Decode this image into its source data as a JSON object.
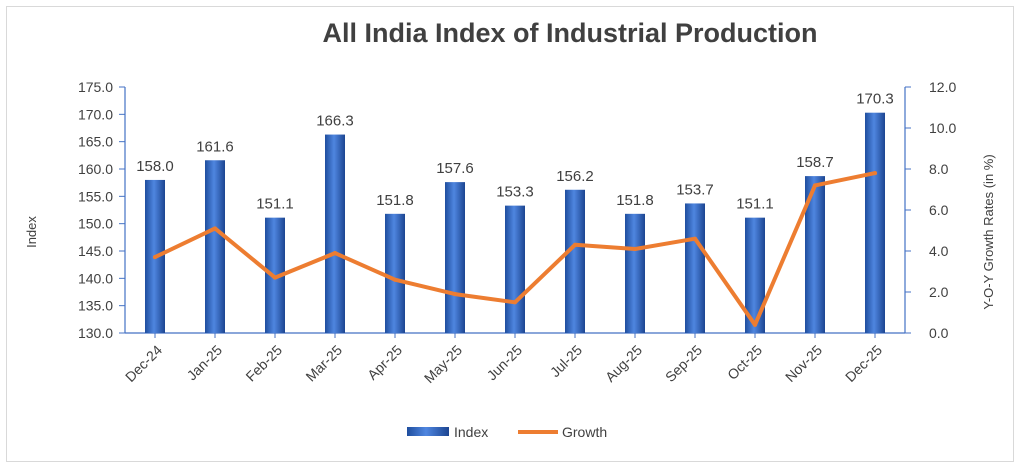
{
  "chart_data": {
    "type": "bar",
    "title": "All India Index of Industrial Production",
    "categories": [
      "Dec-24",
      "Jan-25",
      "Feb-25",
      "Mar-25",
      "Apr-25",
      "May-25",
      "Jun-25",
      "Jul-25",
      "Aug-25",
      "Sep-25",
      "Oct-25",
      "Nov-25",
      "Dec-25"
    ],
    "series": [
      {
        "name": "Index",
        "type": "bar",
        "axis": "left",
        "values": [
          158.0,
          161.6,
          151.1,
          166.3,
          151.8,
          157.6,
          153.3,
          156.2,
          151.8,
          153.7,
          151.1,
          158.7,
          170.3
        ],
        "labels": [
          "158.0",
          "161.6",
          "151.1",
          "166.3",
          "151.8",
          "157.6",
          "153.3",
          "156.2",
          "151.8",
          "153.7",
          "151.1",
          "158.7",
          "170.3"
        ],
        "color": "#2e5fbf"
      },
      {
        "name": "Growth",
        "type": "line",
        "axis": "right",
        "values": [
          3.7,
          5.1,
          2.7,
          3.9,
          2.6,
          1.9,
          1.5,
          4.3,
          4.1,
          4.6,
          0.4,
          7.2,
          7.8
        ],
        "color": "#ed7d31"
      }
    ],
    "ylabel": "Index",
    "y2label": "Y-O-Y Growth Rates (in %)",
    "ylim": [
      130,
      175
    ],
    "y2lim": [
      0,
      12
    ],
    "yticks": [
      "130.0",
      "135.0",
      "140.0",
      "145.0",
      "150.0",
      "155.0",
      "160.0",
      "165.0",
      "170.0",
      "175.0"
    ],
    "y2ticks": [
      "0.0",
      "2.0",
      "4.0",
      "6.0",
      "8.0",
      "10.0",
      "12.0"
    ],
    "grid": false,
    "legend": "bottom-center"
  }
}
